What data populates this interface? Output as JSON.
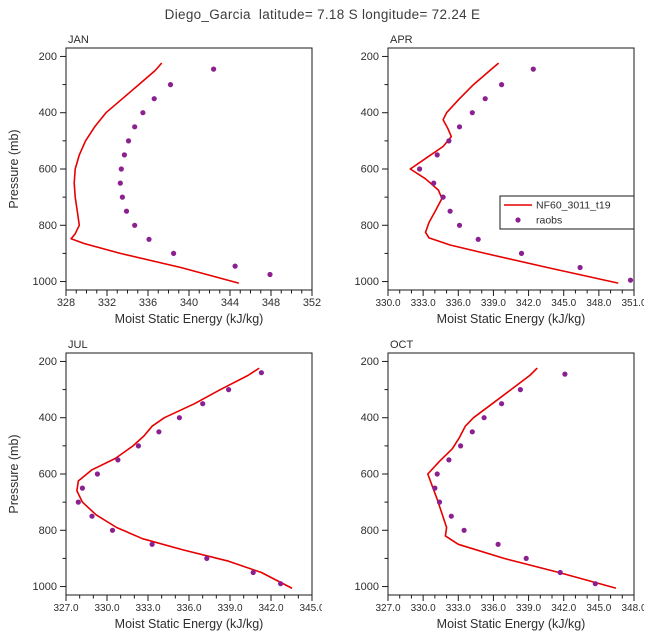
{
  "title": "Diego_Garcia  latitude= 7.18 S longitude= 72.24 E",
  "chart_data": {
    "type": "line",
    "xlabel": "Moist Static Energy (kJ/kg)",
    "ylabel": "Pressure (mb)",
    "legend": {
      "model_label": "NF60_3011_t19",
      "raobs_label": "raobs",
      "shown_in_panel": "APR",
      "position": "right-middle"
    },
    "colors": {
      "model_line": "#e60000",
      "raobs_dots": "#8b2091",
      "frame": "#1a1a1a",
      "text": "#2e2e2e",
      "title_text": "#3c3c3c"
    },
    "pressure_axis": {
      "label": "Pressure (mb)",
      "top": 170,
      "bottom": 1030,
      "ticks": [
        200,
        400,
        600,
        800,
        1000
      ],
      "minor_step": 100,
      "inverted": true
    },
    "panels": [
      {
        "month": "JAN",
        "x_min": 328,
        "x_max": 352,
        "x_ticks": [
          328,
          332,
          336,
          340,
          344,
          348,
          352
        ],
        "x_tick_labels": [
          "328",
          "332",
          "336",
          "340",
          "344",
          "348",
          "352"
        ],
        "x_minor_step": 1,
        "show_ylabel": true,
        "has_legend": false,
        "series": {
          "model": [
            [
              225,
              337.3
            ],
            [
              250,
              336.7
            ],
            [
              300,
              335.1
            ],
            [
              350,
              333.5
            ],
            [
              400,
              331.9
            ],
            [
              450,
              330.8
            ],
            [
              500,
              329.9
            ],
            [
              550,
              329.3
            ],
            [
              600,
              328.9
            ],
            [
              650,
              328.8
            ],
            [
              700,
              328.9
            ],
            [
              750,
              329.1
            ],
            [
              800,
              329.3
            ],
            [
              830,
              328.9
            ],
            [
              848,
              328.5
            ],
            [
              865,
              329.8
            ],
            [
              900,
              333.3
            ],
            [
              950,
              339.2
            ],
            [
              1005,
              344.8
            ]
          ],
          "raobs": [
            [
              245,
              342.4
            ],
            [
              300,
              338.2
            ],
            [
              350,
              336.6
            ],
            [
              400,
              335.5
            ],
            [
              450,
              334.7
            ],
            [
              500,
              334.1
            ],
            [
              550,
              333.7
            ],
            [
              600,
              333.4
            ],
            [
              650,
              333.3
            ],
            [
              700,
              333.5
            ],
            [
              750,
              333.9
            ],
            [
              800,
              334.7
            ],
            [
              850,
              336.1
            ],
            [
              900,
              338.5
            ],
            [
              945,
              344.5
            ],
            [
              975,
              347.9
            ]
          ]
        }
      },
      {
        "month": "APR",
        "x_min": 330,
        "x_max": 351,
        "x_ticks": [
          330,
          333,
          336,
          339,
          342,
          345,
          348,
          351
        ],
        "x_tick_labels": [
          "330.0",
          "333.0",
          "336.0",
          "339.0",
          "342.0",
          "345.0",
          "348.0",
          "351.0"
        ],
        "x_minor_step": 1,
        "show_ylabel": false,
        "has_legend": true,
        "series": {
          "model": [
            [
              225,
              339.4
            ],
            [
              250,
              338.7
            ],
            [
              300,
              337.3
            ],
            [
              350,
              336.1
            ],
            [
              400,
              335.0
            ],
            [
              425,
              334.7
            ],
            [
              455,
              335.1
            ],
            [
              485,
              335.4
            ],
            [
              520,
              334.7
            ],
            [
              560,
              333.3
            ],
            [
              600,
              331.9
            ],
            [
              635,
              333.2
            ],
            [
              675,
              334.3
            ],
            [
              705,
              334.6
            ],
            [
              745,
              334.1
            ],
            [
              790,
              333.5
            ],
            [
              825,
              333.2
            ],
            [
              845,
              333.5
            ],
            [
              870,
              335.3
            ],
            [
              900,
              338.3
            ],
            [
              950,
              343.6
            ],
            [
              1005,
              349.6
            ]
          ],
          "raobs": [
            [
              245,
              342.4
            ],
            [
              300,
              339.7
            ],
            [
              350,
              338.3
            ],
            [
              400,
              337.2
            ],
            [
              450,
              336.1
            ],
            [
              500,
              335.2
            ],
            [
              550,
              334.2
            ],
            [
              600,
              332.7
            ],
            [
              650,
              333.9
            ],
            [
              700,
              334.7
            ],
            [
              750,
              335.3
            ],
            [
              800,
              336.1
            ],
            [
              850,
              337.7
            ],
            [
              900,
              341.4
            ],
            [
              950,
              346.4
            ],
            [
              995,
              350.7
            ]
          ]
        }
      },
      {
        "month": "JUL",
        "x_min": 327,
        "x_max": 345,
        "x_ticks": [
          327,
          330,
          333,
          336,
          339,
          342,
          345
        ],
        "x_tick_labels": [
          "327.0",
          "330.0",
          "333.0",
          "336.0",
          "339.0",
          "342.0",
          "345.0"
        ],
        "x_minor_step": 1,
        "show_ylabel": true,
        "has_legend": false,
        "series": {
          "model": [
            [
              225,
              341.1
            ],
            [
              250,
              340.3
            ],
            [
              300,
              338.3
            ],
            [
              350,
              336.4
            ],
            [
              400,
              334.2
            ],
            [
              430,
              333.3
            ],
            [
              465,
              332.7
            ],
            [
              500,
              331.9
            ],
            [
              545,
              330.6
            ],
            [
              585,
              328.9
            ],
            [
              625,
              327.9
            ],
            [
              660,
              327.8
            ],
            [
              700,
              328.2
            ],
            [
              745,
              329.2
            ],
            [
              790,
              330.7
            ],
            [
              830,
              332.6
            ],
            [
              870,
              335.6
            ],
            [
              910,
              338.9
            ],
            [
              950,
              341.3
            ],
            [
              1005,
              343.5
            ]
          ],
          "raobs": [
            [
              240,
              341.3
            ],
            [
              300,
              338.9
            ],
            [
              350,
              337.0
            ],
            [
              400,
              335.3
            ],
            [
              450,
              333.8
            ],
            [
              500,
              332.3
            ],
            [
              550,
              330.8
            ],
            [
              600,
              329.3
            ],
            [
              650,
              328.2
            ],
            [
              700,
              327.9
            ],
            [
              750,
              328.9
            ],
            [
              800,
              330.4
            ],
            [
              850,
              333.3
            ],
            [
              900,
              337.3
            ],
            [
              950,
              340.7
            ],
            [
              990,
              342.7
            ]
          ]
        }
      },
      {
        "month": "OCT",
        "x_min": 327,
        "x_max": 348,
        "x_ticks": [
          327,
          330,
          333,
          336,
          339,
          342,
          345,
          348
        ],
        "x_tick_labels": [
          "327.0",
          "330.0",
          "333.0",
          "336.0",
          "339.0",
          "342.0",
          "345.0",
          "348.0"
        ],
        "x_minor_step": 1,
        "show_ylabel": false,
        "has_legend": false,
        "series": {
          "model": [
            [
              225,
              339.7
            ],
            [
              250,
              339.1
            ],
            [
              300,
              337.5
            ],
            [
              350,
              335.9
            ],
            [
              400,
              334.3
            ],
            [
              430,
              333.6
            ],
            [
              470,
              333.1
            ],
            [
              510,
              332.5
            ],
            [
              555,
              331.4
            ],
            [
              600,
              330.4
            ],
            [
              645,
              330.8
            ],
            [
              690,
              331.2
            ],
            [
              740,
              331.6
            ],
            [
              790,
              332.0
            ],
            [
              820,
              331.9
            ],
            [
              850,
              333.0
            ],
            [
              900,
              336.9
            ],
            [
              950,
              341.6
            ],
            [
              1005,
              346.4
            ]
          ],
          "raobs": [
            [
              245,
              342.1
            ],
            [
              300,
              338.3
            ],
            [
              350,
              336.7
            ],
            [
              400,
              335.2
            ],
            [
              450,
              334.2
            ],
            [
              500,
              333.2
            ],
            [
              550,
              332.2
            ],
            [
              600,
              331.2
            ],
            [
              650,
              331.0
            ],
            [
              700,
              331.4
            ],
            [
              750,
              332.4
            ],
            [
              800,
              333.5
            ],
            [
              850,
              336.4
            ],
            [
              900,
              338.8
            ],
            [
              950,
              341.7
            ],
            [
              990,
              344.7
            ]
          ]
        }
      }
    ]
  }
}
